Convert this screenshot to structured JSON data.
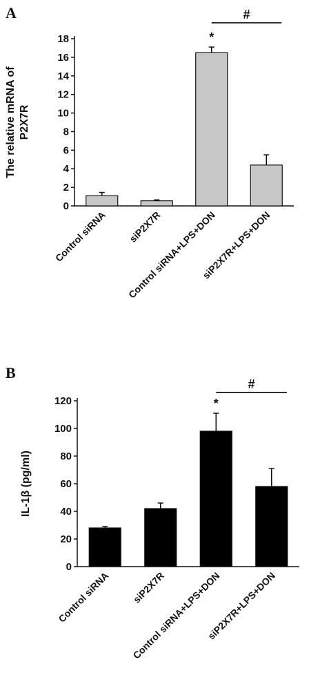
{
  "chart_data": [
    {
      "type": "bar",
      "panel": "A",
      "ylabel_lines": [
        "The relative mRNA of",
        "P2X7R"
      ],
      "categories": [
        "Control siRNA",
        "siP2X7R",
        "Control siRNA+LPS+DON",
        "siP2X7R+LPS+DON"
      ],
      "values": [
        1.1,
        0.55,
        16.5,
        4.4
      ],
      "errors": [
        0.35,
        0.1,
        0.6,
        1.1
      ],
      "ylim": [
        0,
        18
      ],
      "yticks": [
        "0",
        "2",
        "4",
        "6",
        "8",
        "10",
        "12",
        "14",
        "16",
        "18"
      ],
      "bar_color": "#c8c8c8",
      "asterisk": "*",
      "hash": "#"
    },
    {
      "type": "bar",
      "panel": "B",
      "ylabel_lines": [
        "IL-1β (pg/ml)"
      ],
      "categories": [
        "Control siRNA",
        "siP2X7R",
        "Control siRNA+LPS+DON",
        "siP2X7R+LPS+DON"
      ],
      "values": [
        28,
        42,
        98,
        58
      ],
      "errors": [
        1,
        4,
        13,
        13
      ],
      "ylim": [
        0,
        120
      ],
      "yticks": [
        "0",
        "20",
        "40",
        "60",
        "80",
        "100",
        "120"
      ],
      "bar_color": "#000000",
      "asterisk": "*",
      "hash": "#"
    }
  ]
}
